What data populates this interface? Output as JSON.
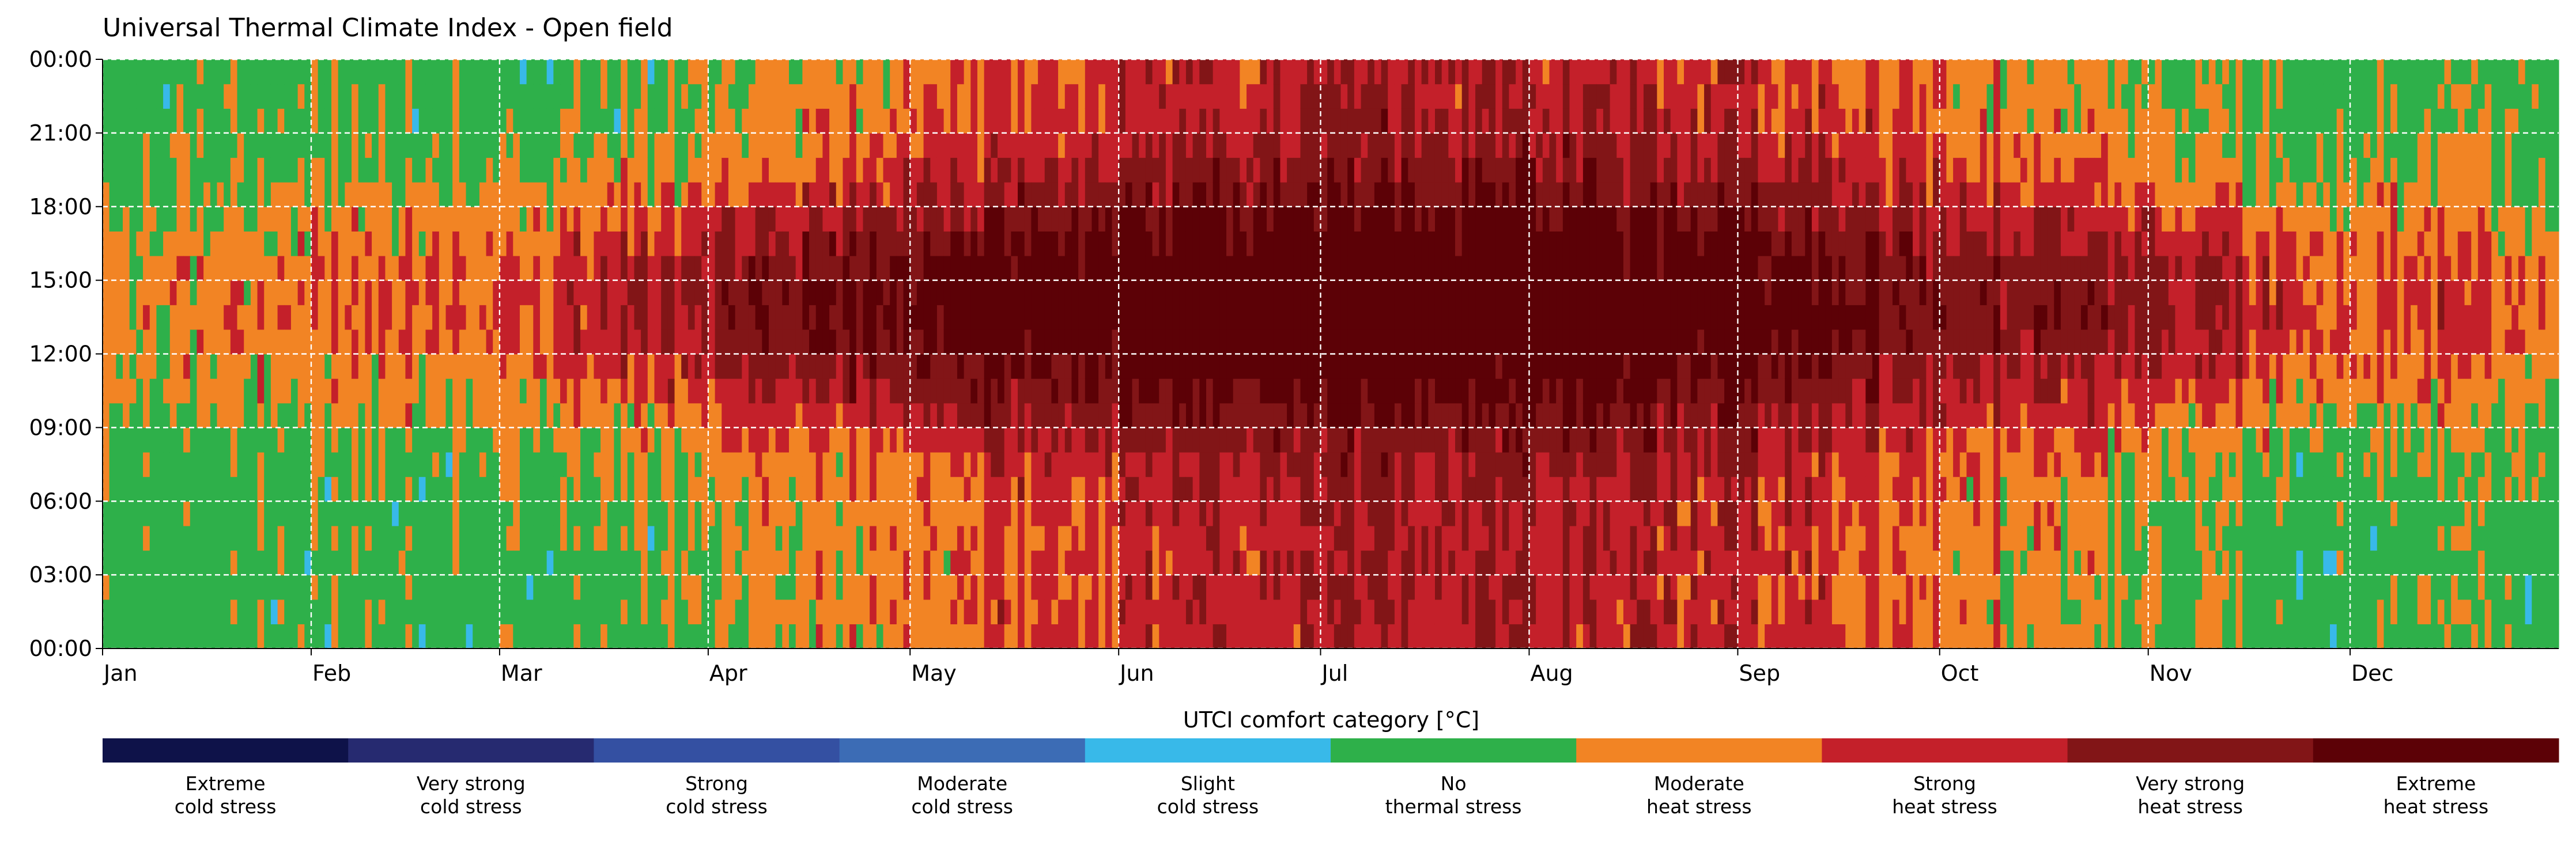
{
  "chart_data": {
    "type": "heatmap",
    "title": "Universal Thermal Climate Index - Open field",
    "x_tick_labels": [
      "Jan",
      "Feb",
      "Mar",
      "Apr",
      "May",
      "Jun",
      "Jul",
      "Aug",
      "Sep",
      "Oct",
      "Nov",
      "Dec"
    ],
    "x_tick_days": [
      1,
      32,
      60,
      91,
      121,
      152,
      182,
      213,
      244,
      274,
      305,
      335
    ],
    "x_range_days": [
      1,
      365
    ],
    "y_tick_labels": [
      "00:00",
      "03:00",
      "06:00",
      "09:00",
      "12:00",
      "15:00",
      "18:00",
      "21:00",
      "00:00"
    ],
    "y_range_hours": [
      0,
      24
    ],
    "grid": "dashed white lines at month starts and every 3 hours",
    "colorbar": {
      "title": "UTCI comfort category [°C]",
      "categories": [
        {
          "line1": "Extreme",
          "line2": "cold stress",
          "color": "#0e1249"
        },
        {
          "line1": "Very strong",
          "line2": "cold stress",
          "color": "#262a70"
        },
        {
          "line1": "Strong",
          "line2": "cold stress",
          "color": "#3450a2"
        },
        {
          "line1": "Moderate",
          "line2": "cold stress",
          "color": "#3c6cb5"
        },
        {
          "line1": "Slight",
          "line2": "cold stress",
          "color": "#38b9e9"
        },
        {
          "line1": "No",
          "line2": "thermal stress",
          "color": "#2eb04a"
        },
        {
          "line1": "Moderate",
          "line2": "heat stress",
          "color": "#f28424"
        },
        {
          "line1": "Strong",
          "line2": "heat stress",
          "color": "#c4202a"
        },
        {
          "line1": "Very strong",
          "line2": "heat stress",
          "color": "#821517"
        },
        {
          "line1": "Extreme",
          "line2": "heat stress",
          "color": "#5c0106"
        }
      ]
    },
    "seasonal_profile": {
      "description": "approximate daily-max / night category envelope by day of year",
      "day_of_year": [
        1,
        32,
        60,
        91,
        121,
        152,
        182,
        213,
        244,
        274,
        305,
        335,
        365
      ],
      "daytime_peak_category_index": [
        6,
        6.3,
        6.8,
        7.8,
        9,
        9.4,
        9.8,
        9.8,
        9.3,
        8.4,
        7.8,
        6.8,
        6.3
      ],
      "night_category_index": [
        5,
        5,
        5,
        5.2,
        6.3,
        6.8,
        7.4,
        7.4,
        7,
        6.3,
        5.3,
        5,
        5
      ]
    }
  }
}
